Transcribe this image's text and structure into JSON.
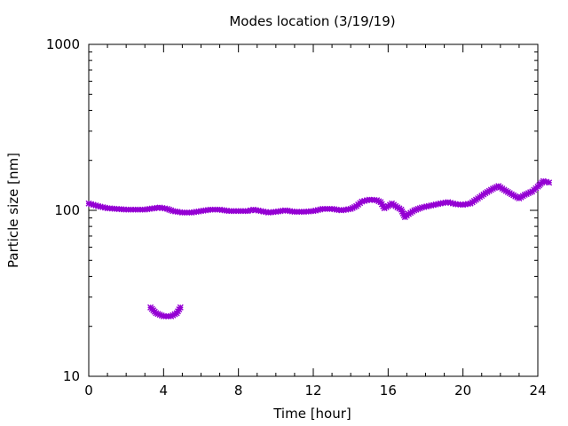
{
  "chart_data": {
    "type": "scatter",
    "title": "Modes location (3/19/19)",
    "xlabel": "Time [hour]",
    "ylabel": "Particle size [nm]",
    "xlim": [
      0,
      24
    ],
    "ylim": [
      10,
      1000
    ],
    "y_scale": "log",
    "grid": false,
    "legend": "none",
    "x_ticks": [
      0,
      4,
      8,
      12,
      16,
      20,
      24
    ],
    "y_ticks": [
      10,
      100,
      1000
    ],
    "marker_color": "#9400d3",
    "series": [
      {
        "points": [
          [
            0.0,
            110
          ],
          [
            0.5,
            106
          ],
          [
            1.0,
            103
          ],
          [
            1.5,
            102
          ],
          [
            2.0,
            101
          ],
          [
            2.5,
            101
          ],
          [
            3.0,
            101
          ],
          [
            3.5,
            103
          ],
          [
            3.8,
            104
          ],
          [
            4.2,
            102
          ],
          [
            4.5,
            99
          ],
          [
            5.0,
            97
          ],
          [
            5.5,
            97
          ],
          [
            6.0,
            99
          ],
          [
            6.5,
            101
          ],
          [
            7.0,
            101
          ],
          [
            7.5,
            99
          ],
          [
            8.0,
            99
          ],
          [
            8.5,
            99
          ],
          [
            8.8,
            101
          ],
          [
            9.2,
            99
          ],
          [
            9.6,
            97
          ],
          [
            10.0,
            98
          ],
          [
            10.5,
            100
          ],
          [
            11.0,
            98
          ],
          [
            11.5,
            98
          ],
          [
            12.0,
            99
          ],
          [
            12.5,
            102
          ],
          [
            13.0,
            102
          ],
          [
            13.5,
            100
          ],
          [
            14.0,
            102
          ],
          [
            14.3,
            106
          ],
          [
            14.6,
            113
          ],
          [
            15.0,
            116
          ],
          [
            15.4,
            115
          ],
          [
            15.6,
            112
          ],
          [
            15.8,
            103
          ],
          [
            16.0,
            106
          ],
          [
            16.2,
            110
          ],
          [
            16.4,
            106
          ],
          [
            16.7,
            101
          ],
          [
            16.9,
            91
          ],
          [
            17.1,
            95
          ],
          [
            17.4,
            100
          ],
          [
            17.8,
            104
          ],
          [
            18.3,
            107
          ],
          [
            18.8,
            110
          ],
          [
            19.2,
            112
          ],
          [
            19.6,
            109
          ],
          [
            20.0,
            108
          ],
          [
            20.4,
            110
          ],
          [
            20.8,
            118
          ],
          [
            21.2,
            127
          ],
          [
            21.6,
            135
          ],
          [
            21.9,
            140
          ],
          [
            22.2,
            133
          ],
          [
            22.6,
            125
          ],
          [
            23.0,
            118
          ],
          [
            23.3,
            124
          ],
          [
            23.7,
            130
          ],
          [
            24.0,
            139
          ],
          [
            24.3,
            150
          ],
          [
            24.6,
            147
          ]
        ]
      },
      {
        "points": [
          [
            3.3,
            26
          ],
          [
            3.6,
            24
          ],
          [
            4.0,
            23
          ],
          [
            4.4,
            23
          ],
          [
            4.7,
            24
          ],
          [
            4.9,
            26
          ]
        ]
      }
    ]
  }
}
